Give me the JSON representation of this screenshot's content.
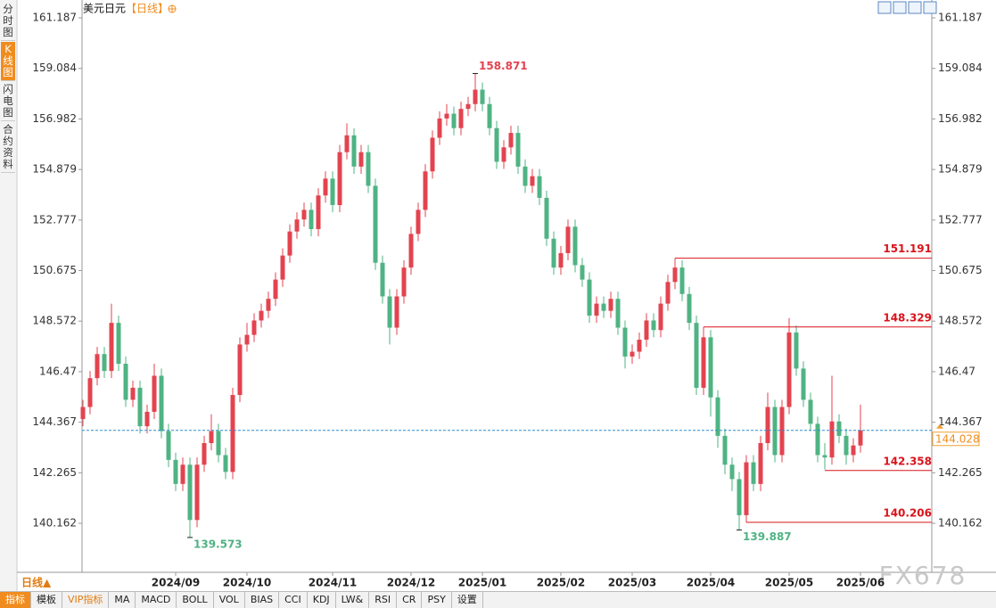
{
  "ui": {
    "side_tabs": [
      "分时图",
      "K线图",
      "闪电图",
      "合约资料"
    ],
    "symbol": "美元日元",
    "period": "【日线】",
    "period_switch": "日线▲",
    "toolbar": [
      "指标",
      "模板",
      "VIP指标",
      "MA",
      "MACD",
      "BOLL",
      "VOL",
      "BIAS",
      "CCI",
      "KDJ",
      "LW&",
      "RSI",
      "CR",
      "PSY",
      "设置"
    ],
    "watermark": "FX678"
  },
  "chart_data": {
    "type": "candlestick",
    "up_color": "#e3434f",
    "down_color": "#4fb383",
    "level_color": "#d9141b",
    "last_color": "#2f8ec9",
    "categories": [
      null,
      null,
      null,
      null,
      null,
      null,
      null,
      null,
      null,
      null,
      null,
      null,
      null,
      "2024/09",
      null,
      null,
      null,
      null,
      null,
      null,
      null,
      null,
      null,
      "2024/10",
      null,
      null,
      null,
      null,
      null,
      null,
      null,
      null,
      null,
      null,
      null,
      "2024/11",
      null,
      null,
      null,
      null,
      null,
      null,
      null,
      null,
      null,
      null,
      "2024/12",
      null,
      null,
      null,
      null,
      null,
      null,
      null,
      null,
      null,
      "2025/01",
      null,
      null,
      null,
      null,
      null,
      null,
      null,
      null,
      null,
      null,
      "2025/02",
      null,
      null,
      null,
      null,
      null,
      null,
      null,
      null,
      null,
      "2025/03",
      null,
      null,
      null,
      null,
      null,
      null,
      null,
      null,
      null,
      null,
      "2025/04",
      null,
      null,
      null,
      null,
      null,
      null,
      null,
      null,
      null,
      null,
      "2025/05",
      null,
      null,
      null,
      null,
      null,
      null,
      null,
      null,
      null,
      "2025/06"
    ],
    "open": [
      144.5,
      145.0,
      146.2,
      147.2,
      146.5,
      148.5,
      146.8,
      145.3,
      145.8,
      144.2,
      144.8,
      146.3,
      144.0,
      142.8,
      141.8,
      142.6,
      140.3,
      142.6,
      143.5,
      144.0,
      143.0,
      142.3,
      145.5,
      147.6,
      148.0,
      148.6,
      149.0,
      149.5,
      150.3,
      151.3,
      152.3,
      152.8,
      153.2,
      152.4,
      153.8,
      154.5,
      153.4,
      155.6,
      156.3,
      155.0,
      155.6,
      154.2,
      151.0,
      149.6,
      148.3,
      149.6,
      150.8,
      152.2,
      153.2,
      154.8,
      156.2,
      157.0,
      157.2,
      156.6,
      157.4,
      157.6,
      158.2,
      157.6,
      156.6,
      155.2,
      155.8,
      156.4,
      155.0,
      154.2,
      154.6,
      153.7,
      152.0,
      150.8,
      151.4,
      152.5,
      150.9,
      150.3,
      148.8,
      149.3,
      149.0,
      149.5,
      148.3,
      147.1,
      147.3,
      147.8,
      148.6,
      148.2,
      149.3,
      150.2,
      150.8,
      149.7,
      148.5,
      145.8,
      147.9,
      145.4,
      143.8,
      142.6,
      142.0,
      140.5,
      142.7,
      141.8,
      143.5,
      145.0,
      143.0,
      145.0,
      148.1,
      146.6,
      145.3,
      144.3,
      143.0,
      142.9,
      144.4,
      143.8,
      143.0,
      143.4
    ],
    "high": [
      145.3,
      146.5,
      147.5,
      147.5,
      149.3,
      148.8,
      147.1,
      146.1,
      146.1,
      145.1,
      146.8,
      146.6,
      144.3,
      143.1,
      142.9,
      142.9,
      142.9,
      143.8,
      144.7,
      144.3,
      143.3,
      145.8,
      147.9,
      148.5,
      148.9,
      149.3,
      149.8,
      150.6,
      151.6,
      152.6,
      153.1,
      153.5,
      153.5,
      154.1,
      154.8,
      154.8,
      155.9,
      156.8,
      156.6,
      155.9,
      155.9,
      154.5,
      151.3,
      149.9,
      149.9,
      151.1,
      152.5,
      153.5,
      155.1,
      156.5,
      157.3,
      157.6,
      157.5,
      157.7,
      157.9,
      158.871,
      158.5,
      157.9,
      156.9,
      156.1,
      156.7,
      156.7,
      155.3,
      154.9,
      154.9,
      154.0,
      152.3,
      151.7,
      152.8,
      152.8,
      151.2,
      150.6,
      149.6,
      149.6,
      149.8,
      149.8,
      148.6,
      147.6,
      148.1,
      148.9,
      148.9,
      149.6,
      150.5,
      151.191,
      151.1,
      150.0,
      148.8,
      148.329,
      148.2,
      145.7,
      144.1,
      142.9,
      142.3,
      143.0,
      143.0,
      143.8,
      145.6,
      145.3,
      145.3,
      148.7,
      148.4,
      146.9,
      145.6,
      144.6,
      143.5,
      146.3,
      144.7,
      144.1,
      143.7,
      145.1
    ],
    "low": [
      144.2,
      144.7,
      145.9,
      146.2,
      146.2,
      146.5,
      145.0,
      145.0,
      143.9,
      143.9,
      144.5,
      143.7,
      142.5,
      141.5,
      141.5,
      139.573,
      140.0,
      142.3,
      143.2,
      142.7,
      142.0,
      142.0,
      145.2,
      147.3,
      147.7,
      148.3,
      148.7,
      149.2,
      150.0,
      151.0,
      152.0,
      152.5,
      152.1,
      152.1,
      153.5,
      153.1,
      153.1,
      155.3,
      154.7,
      154.7,
      153.9,
      150.7,
      149.3,
      147.6,
      148.0,
      149.3,
      150.5,
      151.9,
      152.9,
      154.5,
      155.9,
      156.7,
      156.3,
      156.3,
      157.1,
      157.3,
      157.3,
      156.3,
      154.9,
      154.9,
      155.5,
      154.7,
      153.9,
      153.9,
      153.4,
      151.7,
      150.5,
      150.5,
      151.1,
      150.6,
      150.0,
      148.5,
      148.5,
      148.7,
      148.7,
      148.0,
      146.6,
      146.8,
      147.0,
      147.5,
      147.9,
      147.9,
      149.0,
      149.9,
      149.4,
      148.2,
      145.5,
      145.5,
      144.6,
      143.3,
      142.2,
      141.5,
      139.887,
      140.2,
      141.5,
      141.5,
      143.2,
      142.7,
      142.7,
      144.7,
      146.3,
      145.0,
      144.0,
      142.7,
      142.4,
      142.6,
      143.5,
      142.6,
      142.7,
      143.1
    ],
    "close": [
      145.0,
      146.2,
      147.2,
      146.5,
      148.5,
      146.8,
      145.3,
      145.8,
      144.2,
      144.8,
      146.3,
      144.0,
      142.8,
      141.8,
      142.6,
      140.3,
      142.6,
      143.5,
      144.0,
      143.0,
      142.3,
      145.5,
      147.6,
      148.0,
      148.6,
      149.0,
      149.5,
      150.3,
      151.3,
      152.3,
      152.8,
      153.2,
      152.4,
      153.8,
      154.5,
      153.4,
      155.6,
      156.3,
      155.0,
      155.6,
      154.2,
      151.0,
      149.6,
      148.3,
      149.6,
      150.8,
      152.2,
      153.2,
      154.8,
      156.2,
      157.0,
      157.2,
      156.6,
      157.4,
      157.6,
      158.2,
      157.6,
      156.6,
      155.2,
      155.8,
      156.4,
      155.0,
      154.2,
      154.6,
      153.7,
      152.0,
      150.8,
      151.4,
      152.5,
      150.9,
      150.3,
      148.8,
      149.3,
      149.0,
      149.5,
      148.3,
      147.1,
      147.3,
      147.8,
      148.6,
      148.2,
      149.3,
      150.2,
      150.8,
      149.7,
      148.5,
      145.8,
      147.9,
      145.4,
      143.8,
      142.6,
      142.0,
      140.5,
      142.7,
      141.8,
      143.5,
      145.0,
      143.0,
      145.0,
      148.1,
      146.6,
      145.3,
      144.3,
      143.0,
      142.9,
      144.4,
      143.8,
      143.0,
      143.4,
      144.028
    ],
    "ylim": [
      138.197,
      161.929
    ],
    "yticks": [
      140.162,
      142.265,
      144.367,
      146.47,
      148.572,
      150.675,
      152.777,
      154.879,
      156.982,
      159.084,
      161.187
    ],
    "levels": [
      151.191,
      148.329,
      142.358,
      140.206
    ],
    "extremes": [
      158.871,
      139.573,
      139.887
    ]
  }
}
